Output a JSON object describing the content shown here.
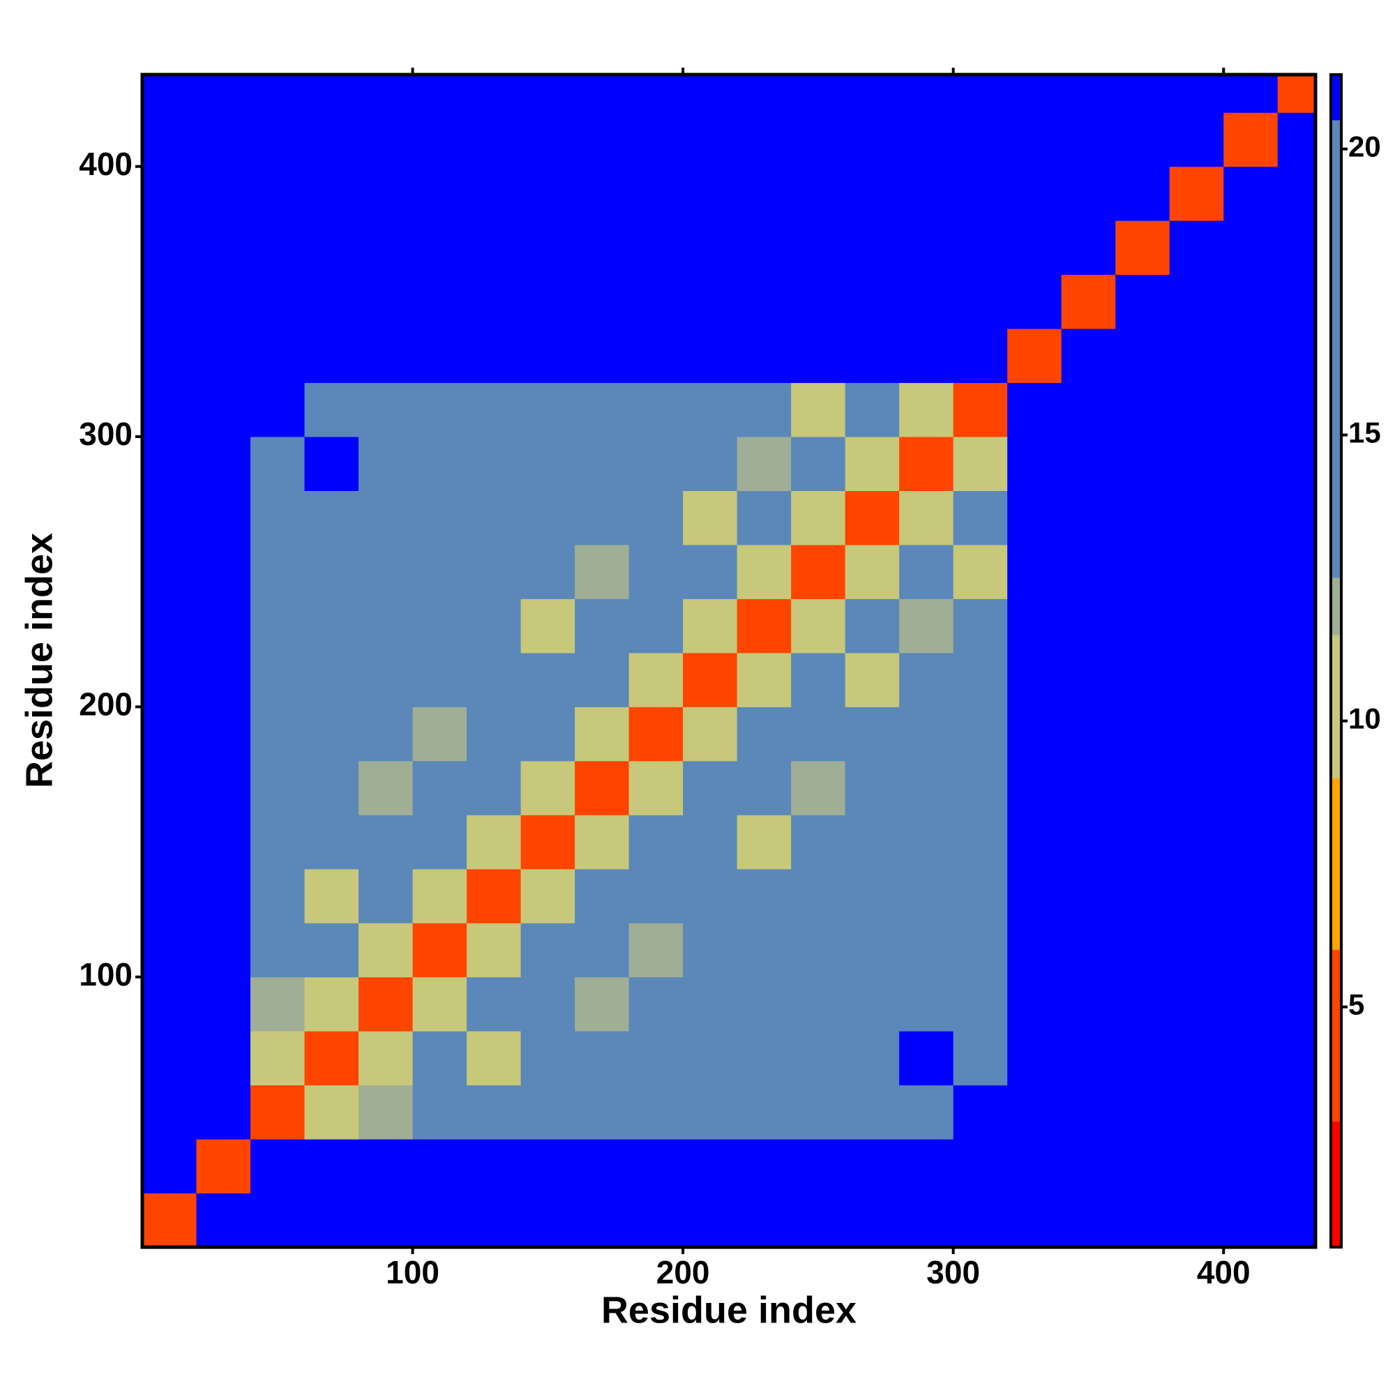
{
  "chart_data": {
    "type": "heatmap",
    "x_label": "Residue index",
    "y_label": "Residue index",
    "bins": [
      0,
      20,
      40,
      60,
      80,
      100,
      120,
      140,
      160,
      180,
      200,
      220,
      240,
      260,
      280,
      300,
      320,
      340,
      360,
      380,
      400,
      420,
      434
    ],
    "xlim": [
      0,
      434
    ],
    "ylim": [
      0,
      434
    ],
    "xticks": [
      100,
      200,
      300,
      400
    ],
    "yticks": [
      100,
      200,
      300,
      400
    ],
    "zlim": [
      0.8,
      21.3
    ],
    "zticks": [
      5,
      10,
      15,
      20
    ],
    "colorscale": [
      [
        3,
        "#ff0000"
      ],
      [
        6,
        "#ff4500"
      ],
      [
        9,
        "#ffa500"
      ],
      [
        11.5,
        "#c8c87a"
      ],
      [
        12.5,
        "#9fae95"
      ],
      [
        20.5,
        "#5b88b8"
      ],
      [
        21.3,
        "#0000ff"
      ]
    ],
    "z": [
      [
        4,
        21,
        21,
        21,
        21,
        21,
        21,
        21,
        21,
        21,
        21,
        21,
        21,
        21,
        21,
        21,
        21,
        21,
        21,
        21,
        21,
        21
      ],
      [
        21,
        4,
        21,
        21,
        21,
        21,
        21,
        21,
        21,
        21,
        21,
        21,
        21,
        21,
        21,
        21,
        21,
        21,
        21,
        21,
        21,
        21
      ],
      [
        21,
        21,
        4,
        11,
        12,
        15,
        15,
        15,
        15,
        15,
        15,
        15,
        15,
        15,
        15,
        21,
        21,
        21,
        21,
        21,
        21,
        21
      ],
      [
        21,
        21,
        11,
        4,
        11,
        15,
        11,
        15,
        15,
        15,
        15,
        15,
        15,
        15,
        21,
        15,
        21,
        21,
        21,
        21,
        21,
        21
      ],
      [
        21,
        21,
        12,
        11,
        4,
        11,
        15,
        15,
        12,
        15,
        15,
        15,
        15,
        15,
        15,
        15,
        21,
        21,
        21,
        21,
        21,
        21
      ],
      [
        21,
        21,
        15,
        15,
        11,
        4,
        11,
        15,
        15,
        12,
        15,
        15,
        15,
        15,
        15,
        15,
        21,
        21,
        21,
        21,
        21,
        21
      ],
      [
        21,
        21,
        15,
        11,
        15,
        11,
        4,
        11,
        15,
        15,
        15,
        15,
        15,
        15,
        15,
        15,
        21,
        21,
        21,
        21,
        21,
        21
      ],
      [
        21,
        21,
        15,
        15,
        15,
        15,
        11,
        4,
        11,
        15,
        15,
        11,
        15,
        15,
        15,
        15,
        21,
        21,
        21,
        21,
        21,
        21
      ],
      [
        21,
        21,
        15,
        15,
        12,
        15,
        15,
        11,
        4,
        11,
        15,
        15,
        12,
        15,
        15,
        15,
        21,
        21,
        21,
        21,
        21,
        21
      ],
      [
        21,
        21,
        15,
        15,
        15,
        12,
        15,
        15,
        11,
        4,
        11,
        15,
        15,
        15,
        15,
        15,
        21,
        21,
        21,
        21,
        21,
        21
      ],
      [
        21,
        21,
        15,
        15,
        15,
        15,
        15,
        15,
        15,
        11,
        4,
        11,
        15,
        11,
        15,
        15,
        21,
        21,
        21,
        21,
        21,
        21
      ],
      [
        21,
        21,
        15,
        15,
        15,
        15,
        15,
        11,
        15,
        15,
        11,
        4,
        11,
        15,
        12,
        15,
        21,
        21,
        21,
        21,
        21,
        21
      ],
      [
        21,
        21,
        15,
        15,
        15,
        15,
        15,
        15,
        12,
        15,
        15,
        11,
        4,
        11,
        15,
        11,
        21,
        21,
        21,
        21,
        21,
        21
      ],
      [
        21,
        21,
        15,
        15,
        15,
        15,
        15,
        15,
        15,
        15,
        11,
        15,
        11,
        4,
        11,
        15,
        21,
        21,
        21,
        21,
        21,
        21
      ],
      [
        21,
        21,
        15,
        21,
        15,
        15,
        15,
        15,
        15,
        15,
        15,
        12,
        15,
        11,
        4,
        11,
        21,
        21,
        21,
        21,
        21,
        21
      ],
      [
        21,
        21,
        21,
        15,
        15,
        15,
        15,
        15,
        15,
        15,
        15,
        15,
        11,
        15,
        11,
        4,
        21,
        21,
        21,
        21,
        21,
        21
      ],
      [
        21,
        21,
        21,
        21,
        21,
        21,
        21,
        21,
        21,
        21,
        21,
        21,
        21,
        21,
        21,
        21,
        4,
        21,
        21,
        21,
        21,
        21
      ],
      [
        21,
        21,
        21,
        21,
        21,
        21,
        21,
        21,
        21,
        21,
        21,
        21,
        21,
        21,
        21,
        21,
        21,
        4,
        21,
        21,
        21,
        21
      ],
      [
        21,
        21,
        21,
        21,
        21,
        21,
        21,
        21,
        21,
        21,
        21,
        21,
        21,
        21,
        21,
        21,
        21,
        21,
        4,
        21,
        21,
        21
      ],
      [
        21,
        21,
        21,
        21,
        21,
        21,
        21,
        21,
        21,
        21,
        21,
        21,
        21,
        21,
        21,
        21,
        21,
        21,
        21,
        4,
        21,
        21
      ],
      [
        21,
        21,
        21,
        21,
        21,
        21,
        21,
        21,
        21,
        21,
        21,
        21,
        21,
        21,
        21,
        21,
        21,
        21,
        21,
        21,
        4,
        21
      ],
      [
        21,
        21,
        21,
        21,
        21,
        21,
        21,
        21,
        21,
        21,
        21,
        21,
        21,
        21,
        21,
        21,
        21,
        21,
        21,
        21,
        21,
        4
      ]
    ]
  }
}
